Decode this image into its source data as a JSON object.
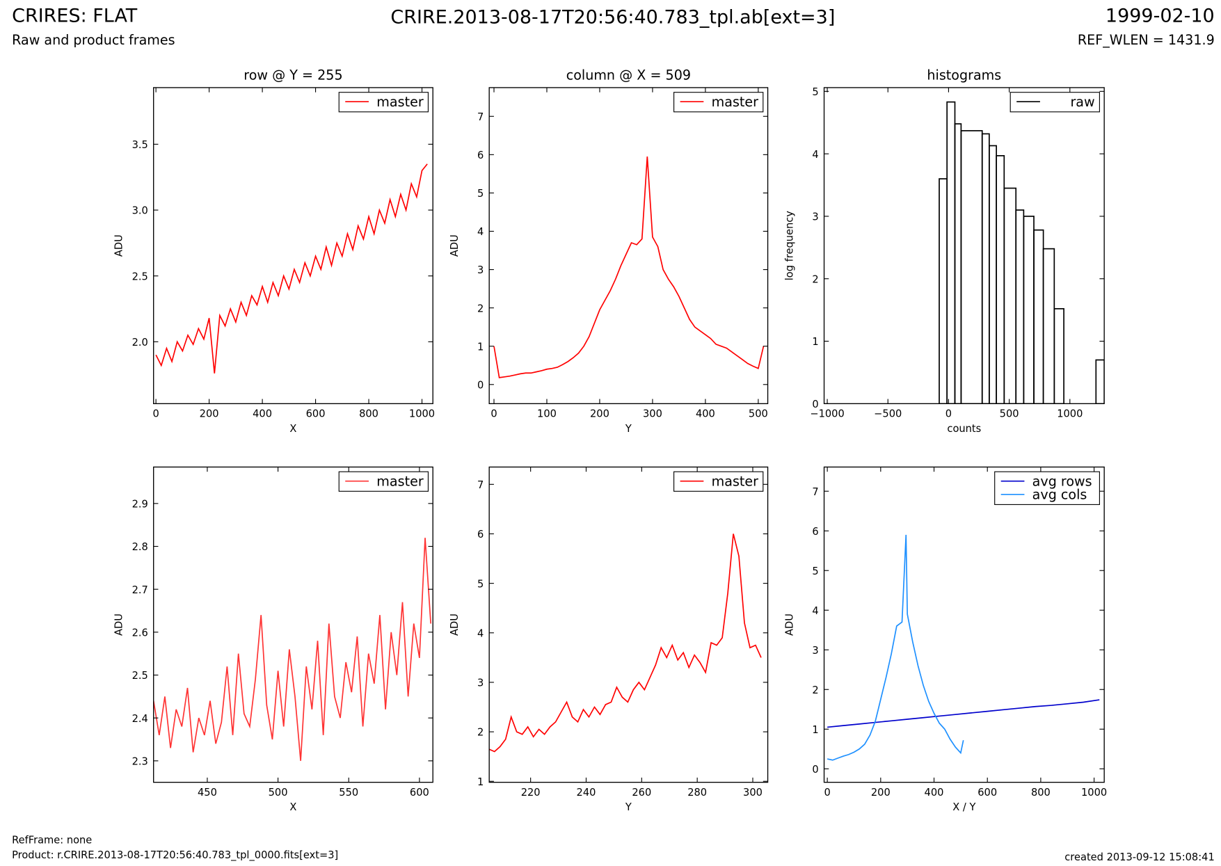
{
  "header": {
    "title": "CRIRES: FLAT",
    "subtitle": "Raw and product frames",
    "filename": "CRIRE.2013-08-17T20:56:40.783_tpl.ab[ext=3]",
    "date": "1999-02-10",
    "ref_wlen": "REF_WLEN = 1431.9"
  },
  "footer": {
    "refframe": "RefFrame: none",
    "product": "Product: r.CRIRE.2013-08-17T20:56:40.783_tpl_0000.fits[ext=3]",
    "created": "created 2013-09-12 15:08:41"
  },
  "chart_data": [
    {
      "type": "line",
      "title": "row @ Y = 255",
      "xlabel": "X",
      "ylabel": "ADU",
      "legend": "upper right",
      "xlim": [
        -9,
        1041
      ],
      "ylim": [
        1.53,
        3.93
      ],
      "xticks": [
        0,
        200,
        400,
        600,
        800,
        1000
      ],
      "yticks": [
        {
          "value": 2,
          "label": "2.0"
        },
        {
          "value": 2.5,
          "label": "2.5"
        },
        {
          "value": 3,
          "label": "3.0"
        },
        {
          "value": 3.5,
          "label": "3.5"
        }
      ],
      "series": [
        {
          "name": "master",
          "color": "#ff0000",
          "x": [
            0,
            20,
            40,
            60,
            80,
            100,
            120,
            140,
            160,
            180,
            200,
            220,
            240,
            260,
            280,
            300,
            320,
            340,
            360,
            380,
            400,
            420,
            440,
            460,
            480,
            500,
            520,
            540,
            560,
            580,
            600,
            620,
            640,
            660,
            680,
            700,
            720,
            740,
            760,
            780,
            800,
            820,
            840,
            860,
            880,
            900,
            920,
            940,
            960,
            980,
            1000,
            1020
          ],
          "values": [
            1.9,
            1.82,
            1.95,
            1.85,
            2.0,
            1.93,
            2.05,
            1.98,
            2.1,
            2.02,
            2.18,
            1.76,
            2.2,
            2.12,
            2.25,
            2.15,
            2.3,
            2.2,
            2.35,
            2.28,
            2.42,
            2.3,
            2.45,
            2.35,
            2.5,
            2.4,
            2.55,
            2.45,
            2.6,
            2.5,
            2.65,
            2.55,
            2.72,
            2.58,
            2.75,
            2.65,
            2.82,
            2.7,
            2.88,
            2.78,
            2.95,
            2.82,
            3.0,
            2.9,
            3.08,
            2.95,
            3.12,
            3.0,
            3.2,
            3.1,
            3.3,
            3.35
          ]
        }
      ]
    },
    {
      "type": "line",
      "title": "column @ X = 509",
      "xlabel": "Y",
      "ylabel": "ADU",
      "legend": "upper right",
      "xlim": [
        -9,
        518
      ],
      "ylim": [
        -0.5,
        7.75
      ],
      "xticks": [
        0,
        100,
        200,
        300,
        400,
        500
      ],
      "yticks": [
        0,
        1,
        2,
        3,
        4,
        5,
        6,
        7
      ],
      "series": [
        {
          "name": "master",
          "color": "#ff0000",
          "x": [
            0,
            10,
            20,
            30,
            40,
            50,
            60,
            70,
            80,
            90,
            100,
            110,
            120,
            130,
            140,
            150,
            160,
            170,
            180,
            190,
            200,
            210,
            220,
            230,
            240,
            250,
            260,
            270,
            280,
            290,
            300,
            310,
            320,
            330,
            340,
            350,
            360,
            370,
            380,
            390,
            400,
            410,
            420,
            430,
            440,
            450,
            460,
            470,
            480,
            490,
            500,
            510
          ],
          "values": [
            1.0,
            0.18,
            0.2,
            0.22,
            0.25,
            0.28,
            0.3,
            0.3,
            0.33,
            0.36,
            0.4,
            0.42,
            0.45,
            0.52,
            0.6,
            0.7,
            0.82,
            1.0,
            1.25,
            1.6,
            1.95,
            2.2,
            2.45,
            2.75,
            3.1,
            3.4,
            3.7,
            3.65,
            3.8,
            5.95,
            3.85,
            3.6,
            3.0,
            2.75,
            2.55,
            2.3,
            2.0,
            1.7,
            1.5,
            1.4,
            1.3,
            1.2,
            1.05,
            1.0,
            0.95,
            0.85,
            0.75,
            0.65,
            0.55,
            0.48,
            0.42,
            1.0
          ]
        }
      ]
    },
    {
      "type": "histogram",
      "title": "histograms",
      "xlabel": "counts",
      "ylabel": "log frequency",
      "legend": "upper right",
      "xlim": [
        -1026,
        1283
      ],
      "ylim": [
        0,
        5.06
      ],
      "xticks": [
        {
          "value": -1000,
          "label": "−1000"
        },
        {
          "value": -500,
          "label": "−500"
        },
        0,
        500,
        1000
      ],
      "yticks": [
        0,
        1,
        2,
        3,
        4,
        5
      ],
      "bins": [
        -77,
        -13,
        52,
        103,
        277,
        335,
        394,
        458,
        555,
        619,
        703,
        781,
        871,
        950,
        1215,
        1283
      ],
      "series": [
        {
          "name": "raw",
          "color": "#000000",
          "values": [
            3.6,
            4.83,
            4.48,
            4.37,
            4.32,
            4.13,
            3.97,
            3.45,
            3.1,
            3.0,
            2.78,
            2.48,
            1.52,
            0,
            0.7
          ]
        }
      ]
    },
    {
      "type": "line",
      "xlabel": "X",
      "ylabel": "ADU",
      "legend": "upper right",
      "xlim": [
        412,
        609.5
      ],
      "ylim": [
        2.25,
        2.985
      ],
      "xticks": [
        450,
        500,
        550,
        600
      ],
      "yticks": [
        2.3,
        2.4,
        2.5,
        2.6,
        2.7,
        2.8,
        2.9
      ],
      "series": [
        {
          "name": "master",
          "color": "#ff3333",
          "x": [
            412,
            416,
            420,
            424,
            428,
            432,
            436,
            440,
            444,
            448,
            452,
            456,
            460,
            464,
            468,
            472,
            476,
            480,
            484,
            488,
            492,
            496,
            500,
            504,
            508,
            512,
            516,
            520,
            524,
            528,
            532,
            536,
            540,
            544,
            548,
            552,
            556,
            560,
            564,
            568,
            572,
            576,
            580,
            584,
            588,
            592,
            596,
            600,
            604,
            608
          ],
          "values": [
            2.44,
            2.36,
            2.45,
            2.33,
            2.42,
            2.38,
            2.47,
            2.32,
            2.4,
            2.36,
            2.44,
            2.34,
            2.39,
            2.52,
            2.36,
            2.55,
            2.41,
            2.38,
            2.49,
            2.64,
            2.43,
            2.35,
            2.51,
            2.38,
            2.56,
            2.45,
            2.3,
            2.52,
            2.42,
            2.58,
            2.36,
            2.62,
            2.45,
            2.4,
            2.53,
            2.46,
            2.59,
            2.38,
            2.55,
            2.48,
            2.64,
            2.42,
            2.6,
            2.5,
            2.67,
            2.45,
            2.62,
            2.54,
            2.82,
            2.62
          ]
        }
      ]
    },
    {
      "type": "line",
      "xlabel": "Y",
      "ylabel": "ADU",
      "legend": "upper right",
      "xlim": [
        205.1,
        305.4
      ],
      "ylim": [
        0.98,
        7.35
      ],
      "xticks": [
        220,
        240,
        260,
        280,
        300
      ],
      "yticks": [
        1,
        2,
        3,
        4,
        5,
        6,
        7
      ],
      "series": [
        {
          "name": "master",
          "color": "#ff0000",
          "x": [
            205,
            207,
            209,
            211,
            213,
            215,
            217,
            219,
            221,
            223,
            225,
            227,
            229,
            231,
            233,
            235,
            237,
            239,
            241,
            243,
            245,
            247,
            249,
            251,
            253,
            255,
            257,
            259,
            261,
            263,
            265,
            267,
            269,
            271,
            273,
            275,
            277,
            279,
            281,
            283,
            285,
            287,
            289,
            291,
            293,
            295,
            297,
            299,
            301,
            303
          ],
          "values": [
            1.65,
            1.6,
            1.7,
            1.85,
            2.3,
            2.0,
            1.95,
            2.1,
            1.9,
            2.05,
            1.95,
            2.1,
            2.2,
            2.4,
            2.6,
            2.3,
            2.2,
            2.45,
            2.3,
            2.5,
            2.35,
            2.55,
            2.6,
            2.9,
            2.7,
            2.6,
            2.85,
            3.0,
            2.85,
            3.1,
            3.35,
            3.7,
            3.5,
            3.75,
            3.45,
            3.6,
            3.3,
            3.55,
            3.4,
            3.2,
            3.8,
            3.75,
            3.9,
            4.8,
            6.0,
            5.55,
            4.2,
            3.7,
            3.75,
            3.5
          ]
        }
      ]
    },
    {
      "type": "line",
      "xlabel": "X / Y",
      "ylabel": "ADU",
      "legend": "upper right",
      "xlim": [
        -12,
        1038
      ],
      "ylim": [
        -0.34,
        7.61
      ],
      "xticks": [
        0,
        200,
        400,
        600,
        800,
        1000
      ],
      "yticks": [
        0,
        1,
        2,
        3,
        4,
        5,
        6,
        7
      ],
      "series": [
        {
          "name": "avg rows",
          "color": "#0000cc",
          "x": [
            0,
            60,
            120,
            180,
            240,
            300,
            360,
            420,
            480,
            540,
            600,
            660,
            720,
            780,
            840,
            900,
            960,
            1020
          ],
          "values": [
            1.05,
            1.09,
            1.13,
            1.17,
            1.21,
            1.25,
            1.29,
            1.33,
            1.37,
            1.41,
            1.45,
            1.49,
            1.53,
            1.57,
            1.6,
            1.64,
            1.68,
            1.74
          ]
        },
        {
          "name": "avg cols",
          "color": "#1e90ff",
          "x": [
            0,
            20,
            40,
            60,
            80,
            100,
            120,
            140,
            160,
            180,
            200,
            220,
            240,
            260,
            280,
            295,
            300,
            320,
            340,
            360,
            380,
            400,
            420,
            440,
            460,
            480,
            500,
            510
          ],
          "values": [
            0.25,
            0.22,
            0.27,
            0.32,
            0.36,
            0.42,
            0.5,
            0.62,
            0.85,
            1.2,
            1.75,
            2.3,
            2.9,
            3.6,
            3.7,
            5.9,
            3.9,
            3.2,
            2.6,
            2.1,
            1.7,
            1.4,
            1.15,
            1.0,
            0.75,
            0.55,
            0.4,
            0.72
          ]
        }
      ]
    }
  ]
}
